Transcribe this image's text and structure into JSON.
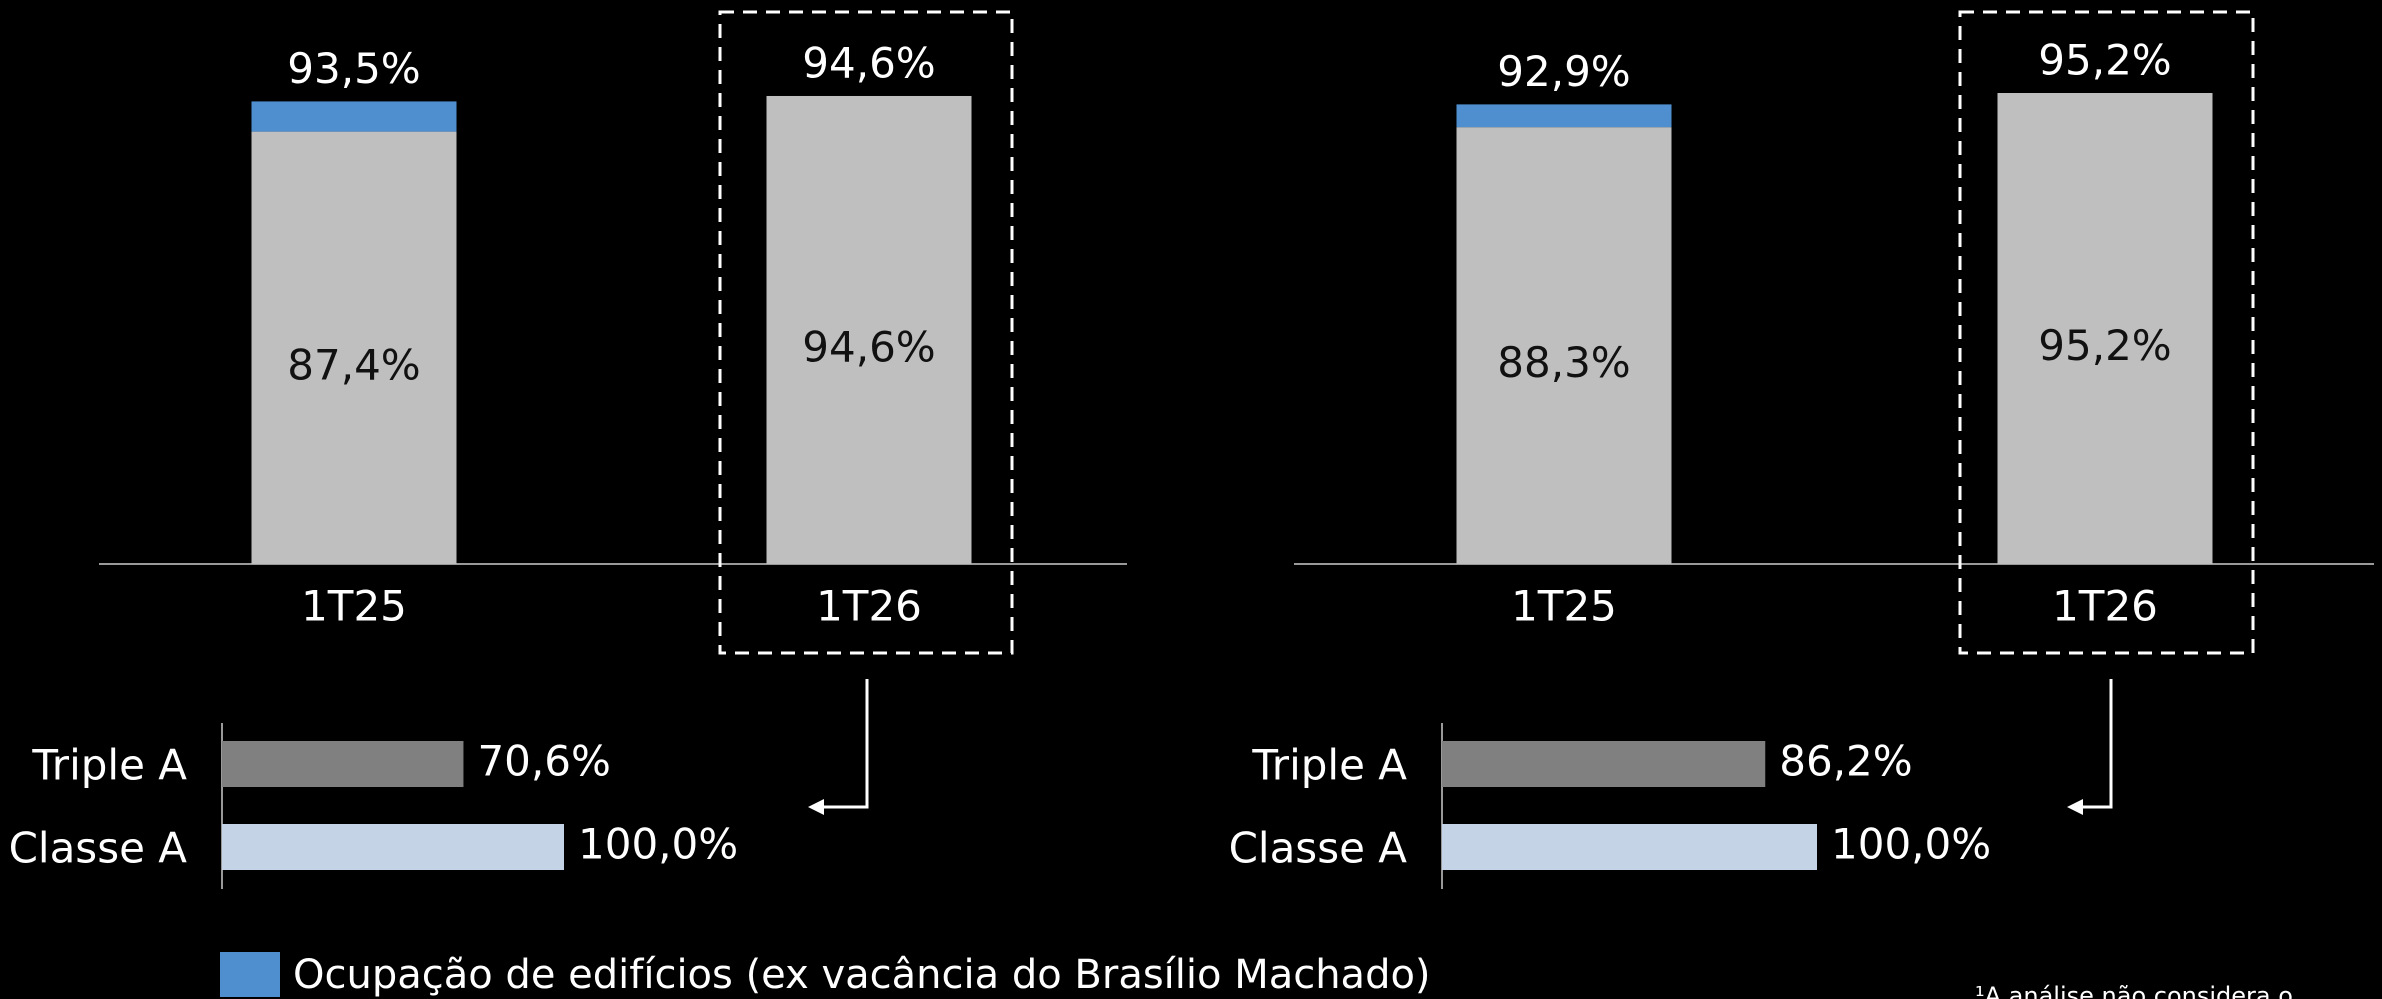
{
  "chart_data": [
    {
      "type": "stacked-bar",
      "categories": [
        "1T25",
        "1T26"
      ],
      "ylim": [
        0,
        114
      ],
      "series": [
        {
          "color": "#bfbfbf",
          "values": [
            87.4,
            94.6
          ],
          "value_labels": [
            "87,4%",
            "94,6%"
          ]
        },
        {
          "name": "Ocupação de edifícios (ex vacância do Brasílio Machado)",
          "color": "#4f8fcf",
          "values": [
            6.1,
            0
          ]
        }
      ],
      "totals": [
        93.5,
        94.6
      ],
      "total_labels": [
        "93,5%",
        "94,6%"
      ]
    },
    {
      "type": "stacked-bar",
      "categories": [
        "1T25",
        "1T26"
      ],
      "ylim": [
        0,
        114
      ],
      "series": [
        {
          "color": "#bfbfbf",
          "values": [
            88.3,
            95.2
          ],
          "value_labels": [
            "88,3%",
            "95,2%"
          ]
        },
        {
          "color": "#4f8fcf",
          "values": [
            4.6,
            0
          ]
        }
      ],
      "totals": [
        92.9,
        95.2
      ],
      "total_labels": [
        "92,9%",
        "95,2%"
      ]
    },
    {
      "type": "hbar",
      "categories": [
        "Triple A",
        "Classe A"
      ],
      "xlim": [
        0,
        100
      ],
      "values": [
        70.6,
        100.0
      ],
      "value_labels": [
        "70,6%",
        "100,0%"
      ],
      "colors": [
        "#808080",
        "#c5d3e6"
      ]
    },
    {
      "type": "hbar",
      "categories": [
        "Triple A",
        "Classe A"
      ],
      "xlim": [
        0,
        100
      ],
      "values": [
        86.2,
        100.0
      ],
      "value_labels": [
        "86,2%",
        "100,0%"
      ],
      "colors": [
        "#808080",
        "#c5d3e6"
      ]
    }
  ],
  "footnote": "¹A análise não considera o"
}
